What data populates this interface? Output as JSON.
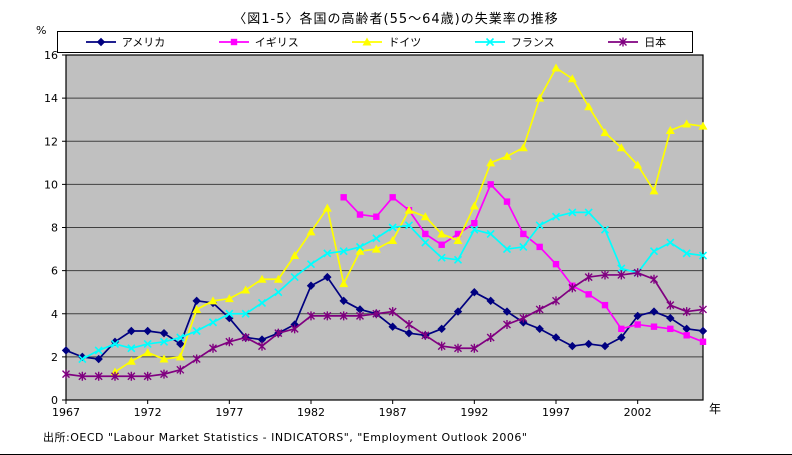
{
  "title": "〈図1-5〉各国の高齢者(55〜64歳)の失業率の推移",
  "y_axis_unit": "%",
  "x_axis_label": "年",
  "source": "出所:OECD \"Labour Market Statistics - INDICATORS\", \"Employment Outlook 2006\"",
  "colors": {
    "plot_bg": "#c0c0c0",
    "grid": "#404040",
    "axis": "#000000",
    "text": "#000000"
  },
  "chart_data": {
    "type": "line",
    "title": "〈図1-5〉各国の高齢者(55〜64歳)の失業率の推移",
    "xlabel": "年",
    "ylabel": "%",
    "x_range": [
      1967,
      2006
    ],
    "ylim": [
      0,
      16
    ],
    "y_ticks": [
      0,
      2,
      4,
      6,
      8,
      10,
      12,
      14,
      16
    ],
    "x_tick_years": [
      1967,
      1972,
      1977,
      1982,
      1987,
      1992,
      1997,
      2002
    ],
    "grid": "horizontal",
    "legend_position": "top",
    "series": [
      {
        "key": "usa",
        "name": "アメリカ",
        "color": "#000080",
        "marker": "diamond",
        "start_year": 1967,
        "values": [
          2.3,
          2.0,
          1.9,
          2.7,
          3.2,
          3.2,
          3.1,
          2.6,
          4.6,
          4.5,
          3.8,
          2.9,
          2.8,
          3.1,
          3.5,
          5.3,
          5.7,
          4.6,
          4.2,
          4.0,
          3.4,
          3.1,
          3.0,
          3.3,
          4.1,
          5.0,
          4.6,
          4.1,
          3.6,
          3.3,
          2.9,
          2.5,
          2.6,
          2.5,
          2.9,
          3.9,
          4.1,
          3.8,
          3.3,
          3.2
        ]
      },
      {
        "key": "uk",
        "name": "イギリス",
        "color": "#ff00ff",
        "marker": "square",
        "start_year": 1984,
        "values": [
          9.4,
          8.6,
          8.5,
          9.4,
          8.8,
          7.7,
          7.2,
          7.7,
          8.2,
          10.0,
          9.2,
          7.7,
          7.1,
          6.3,
          5.3,
          4.9,
          4.4,
          3.3,
          3.5,
          3.4,
          3.3,
          3.0,
          2.7
        ]
      },
      {
        "key": "germany",
        "name": "ドイツ",
        "color": "#ffff00",
        "marker": "triangle",
        "start_year": 1970,
        "values": [
          1.3,
          1.8,
          2.2,
          1.9,
          2.0,
          4.2,
          4.6,
          4.7,
          5.1,
          5.6,
          5.6,
          6.7,
          7.8,
          8.9,
          5.4,
          6.9,
          7.0,
          7.4,
          8.8,
          8.5,
          7.7,
          7.4,
          9.0,
          11.0,
          11.3,
          11.7,
          14.0,
          15.4,
          14.9,
          13.6,
          12.4,
          11.7,
          10.9,
          9.7,
          12.5,
          12.8,
          12.7
        ]
      },
      {
        "key": "france",
        "name": "フランス",
        "color": "#00ffff",
        "marker": "x",
        "start_year": 1968,
        "values": [
          1.9,
          2.3,
          2.6,
          2.4,
          2.6,
          2.7,
          2.9,
          3.2,
          3.6,
          4.0,
          4.0,
          4.5,
          5.0,
          5.7,
          6.3,
          6.8,
          6.9,
          7.1,
          7.5,
          8.0,
          8.1,
          7.3,
          6.6,
          6.5,
          7.9,
          7.7,
          7.0,
          7.1,
          8.1,
          8.5,
          8.7,
          8.7,
          7.9,
          6.1,
          5.9,
          6.9,
          7.3,
          6.8,
          6.7
        ]
      },
      {
        "key": "japan",
        "name": "日本",
        "color": "#800080",
        "marker": "asterisk",
        "start_year": 1967,
        "values": [
          1.2,
          1.1,
          1.1,
          1.1,
          1.1,
          1.1,
          1.2,
          1.4,
          1.9,
          2.4,
          2.7,
          2.9,
          2.5,
          3.1,
          3.3,
          3.9,
          3.9,
          3.9,
          3.9,
          4.0,
          4.1,
          3.5,
          3.0,
          2.5,
          2.4,
          2.4,
          2.9,
          3.5,
          3.8,
          4.2,
          4.6,
          5.2,
          5.7,
          5.8,
          5.8,
          5.9,
          5.6,
          4.4,
          4.1,
          4.2
        ]
      }
    ]
  }
}
